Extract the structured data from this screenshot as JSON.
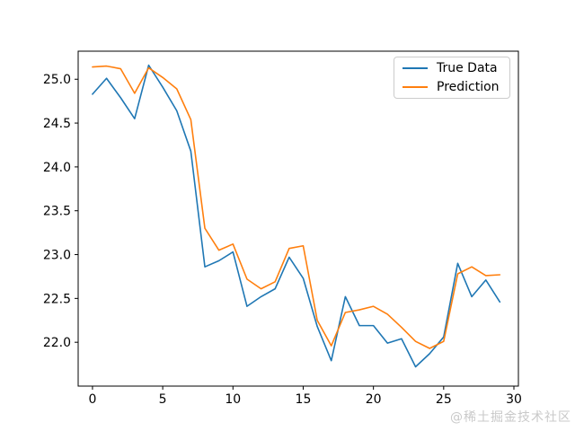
{
  "chart_data": {
    "type": "line",
    "title": "",
    "xlabel": "",
    "ylabel": "",
    "grid": false,
    "legend_position": "upper right",
    "x": [
      0,
      1,
      2,
      3,
      4,
      5,
      6,
      7,
      8,
      9,
      10,
      11,
      12,
      13,
      14,
      15,
      16,
      17,
      18,
      19,
      20,
      21,
      22,
      23,
      24,
      25,
      26,
      27,
      28,
      29
    ],
    "xticks": [
      0,
      5,
      10,
      15,
      20,
      25,
      30
    ],
    "yticks": [
      22.0,
      22.5,
      23.0,
      23.5,
      24.0,
      24.5,
      25.0
    ],
    "xlim": [
      -1.02,
      30.32
    ],
    "ylim": [
      21.5,
      25.32
    ],
    "series": [
      {
        "name": "True Data",
        "color": "#1f77b4",
        "values": [
          24.83,
          25.01,
          24.79,
          24.55,
          25.16,
          24.91,
          24.64,
          24.18,
          22.86,
          22.93,
          23.03,
          22.41,
          22.52,
          22.61,
          22.97,
          22.73,
          22.18,
          21.79,
          22.52,
          22.19,
          22.19,
          21.99,
          22.04,
          21.72,
          21.87,
          22.06,
          22.9,
          22.52,
          22.71,
          22.46
        ]
      },
      {
        "name": "Prediction",
        "color": "#ff7f0e",
        "values": [
          25.14,
          25.15,
          25.12,
          24.84,
          25.13,
          25.02,
          24.89,
          24.54,
          23.3,
          23.05,
          23.12,
          22.72,
          22.61,
          22.69,
          23.07,
          23.1,
          22.25,
          21.96,
          22.34,
          22.37,
          22.41,
          22.32,
          22.17,
          22.01,
          21.93,
          22.01,
          22.78,
          22.86,
          22.76,
          22.77
        ]
      }
    ]
  },
  "watermark": {
    "text": "@稀土掘金技术社区",
    "color": "#c9c9c9"
  }
}
